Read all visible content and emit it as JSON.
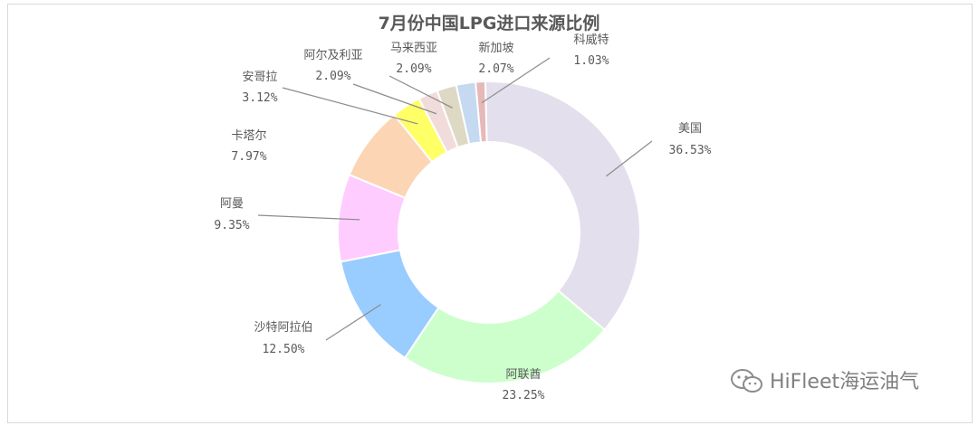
{
  "chart_data": {
    "type": "pie",
    "variant": "donut",
    "title": "7月份中国LPG进口来源比例",
    "start_angle_deg": -1.4,
    "slices": [
      {
        "name": "美国",
        "value": 36.53,
        "label": "36.53%",
        "color": "#e4dfec"
      },
      {
        "name": "阿联酋",
        "value": 23.25,
        "label": "23.25%",
        "color": "#ccffcc"
      },
      {
        "name": "沙特阿拉伯",
        "value": 12.5,
        "label": "12.50%",
        "color": "#99ccff"
      },
      {
        "name": "阿曼",
        "value": 9.35,
        "label": "9.35%",
        "color": "#ffccff"
      },
      {
        "name": "卡塔尔",
        "value": 7.97,
        "label": "7.97%",
        "color": "#fcd5b4"
      },
      {
        "name": "安哥拉",
        "value": 3.12,
        "label": "3.12%",
        "color": "#ffff66"
      },
      {
        "name": "阿尔及利亚",
        "value": 2.09,
        "label": "2.09%",
        "color": "#f2dcdb"
      },
      {
        "name": "马来西亚",
        "value": 2.09,
        "label": "2.09%",
        "color": "#ddd9c4"
      },
      {
        "name": "新加坡",
        "value": 2.07,
        "label": "2.07%",
        "color": "#c5d9f1"
      },
      {
        "name": "科威特",
        "value": 1.03,
        "label": "1.03%",
        "color": "#e6b9b8"
      }
    ]
  },
  "watermark": {
    "text": "HiFleet海运油气"
  }
}
